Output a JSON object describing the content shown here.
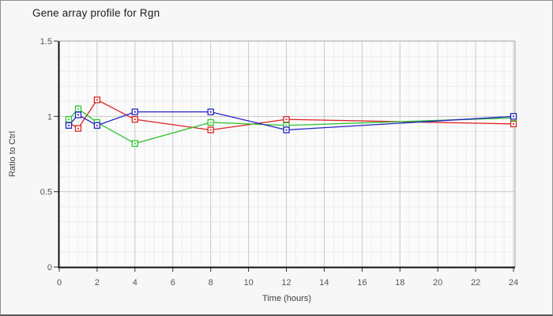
{
  "window": {
    "name": "gene-array-chart"
  },
  "chart_data": {
    "type": "line",
    "title": "Gene array profile for Rgn",
    "xlabel": "Time (hours)",
    "ylabel": "Ratio to Ctrl",
    "x": [
      0.5,
      1,
      2,
      4,
      8,
      12,
      24
    ],
    "series": [
      {
        "name": "series-red",
        "color": "#dd2222",
        "values": [
          0.96,
          0.92,
          1.11,
          0.98,
          0.91,
          0.98,
          0.95
        ]
      },
      {
        "name": "series-green",
        "color": "#2fc42f",
        "values": [
          0.98,
          1.05,
          0.96,
          0.82,
          0.96,
          0.94,
          0.99
        ]
      },
      {
        "name": "series-blue",
        "color": "#2424c4",
        "values": [
          0.94,
          1.01,
          0.94,
          1.03,
          1.03,
          0.91,
          1.0
        ]
      }
    ],
    "xlim": [
      0,
      24
    ],
    "ylim": [
      0,
      1.5
    ],
    "x_ticks": [
      0,
      2,
      4,
      6,
      8,
      10,
      12,
      14,
      16,
      18,
      20,
      22,
      24
    ],
    "y_ticks": [
      0,
      0.5,
      1,
      1.5
    ],
    "x_minor_step": 0.5,
    "y_minor_step": 0.1,
    "grid": true,
    "legend": "none",
    "marker": "open-square",
    "colors": {
      "plot_bg": "#fbfbfb",
      "page_bg": "#f7f7f7",
      "minor_grid": "#ededed",
      "major_grid": "#c9c9c9",
      "frame": "#b5b5b5",
      "axis": "#111111",
      "tick_label": "#555555"
    }
  }
}
